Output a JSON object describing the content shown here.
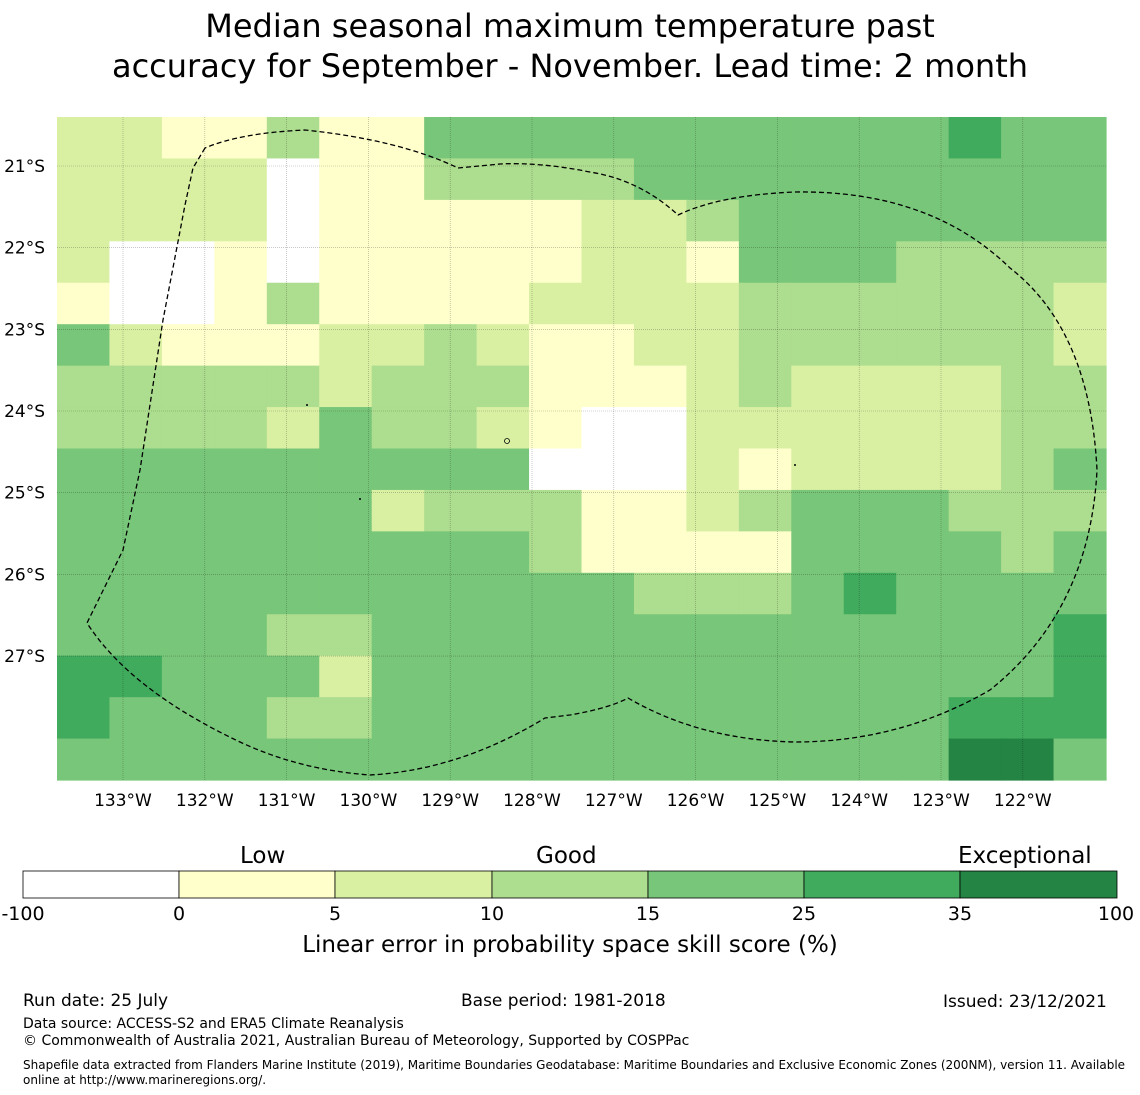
{
  "title": {
    "line1": "Median seasonal maximum temperature past",
    "line2": "accuracy for September - November. Lead time: 2 month"
  },
  "colors": {
    "below_0": "#ffffff",
    "0_5": "#ffffcc",
    "5_10": "#d9f0a3",
    "10_15": "#addd8e",
    "15_25": "#78c679",
    "25_35": "#41ab5d",
    "35_100": "#238443"
  },
  "map": {
    "lat_labels": [
      "21°S",
      "22°S",
      "23°S",
      "24°S",
      "25°S",
      "26°S",
      "27°S"
    ],
    "lon_labels": [
      "133°W",
      "132°W",
      "131°W",
      "130°W",
      "129°W",
      "128°W",
      "127°W",
      "126°W",
      "125°W",
      "124°W",
      "123°W",
      "122°W"
    ],
    "grid_legend": "Each row lists skill categories west to east: W=below 0, Y=0-5, L=5-10, M=10-15, G=15-25, D=25-35, X=35-100",
    "grid": [
      "LLYYMYYGGGGGGGGGGDGG",
      "LLLLWYYMMMMGGGGGGGGG",
      "LLLLWYYYYYLLMGGGGGGG",
      "LWWYWYYYYYLLYGGGMMMM",
      "YWWYMYYYYLLLLMMMMMML",
      "GLYYYLLMLYYLLMMMMMML",
      "MMMMMLMMMYYYLMLLLLMM",
      "MMMMLGMMLYWWLLLLLLMM",
      "GGGGGGGGGWWWLYLLLLMG",
      "GGGGGGLMMMYYLMGGGMMM",
      "GGGGGGGGGMYYYYGGGGMG",
      "GGGGGGGGGGGMMMGDGGGG",
      "GGGGMMGGGGGGGGGGGGGD",
      "DDGGGLGGGGGGGGGGGGGD",
      "DGGGMMGGGGGGGGGGGDDD",
      "GGGGGGGGGGGGGGGGGXXG"
    ]
  },
  "colorbar": {
    "category_labels": {
      "low": "Low",
      "good": "Good",
      "exceptional": "Exceptional"
    },
    "ticks": [
      "-100",
      "0",
      "5",
      "10",
      "15",
      "25",
      "35",
      "100"
    ],
    "title": "Linear error in probability space skill score (%)"
  },
  "footer": {
    "run_date": "Run date: 25 July",
    "base_period": "Base period: 1981-2018",
    "issued": "Issued: 23/12/2021",
    "data_source": "Data source: ACCESS-S2 and ERA5 Climate Reanalysis",
    "copyright": "© Commonwealth of Australia 2021, Australian Bureau of Meteorology, Supported by COSPPac",
    "shapefile_line1": "Shapefile data extracted from Flanders Marine Institute (2019), Maritime Boundaries Geodatabase: Maritime Boundaries and Exclusive Economic Zones (200NM), version 11. Available",
    "shapefile_line2": "online at http://www.marineregions.org/."
  }
}
